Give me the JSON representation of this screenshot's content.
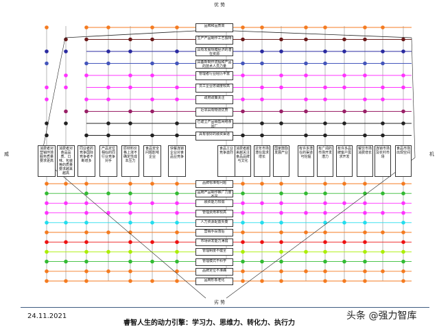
{
  "axis": {
    "top": "优 势",
    "bottom": "劣 势",
    "left": "威",
    "right": "机"
  },
  "top_items": [
    {
      "label": "品牌和品质高",
      "color": "#f47b20"
    },
    {
      "label": "生产产品制作工艺独特",
      "color": "#6b1a1a"
    },
    {
      "label": "具有发展规模经济的潜在资源",
      "color": "#2a2aa0"
    },
    {
      "label": "具备新制作流程和产品的技术人员力量",
      "color": "#4455bb"
    },
    {
      "label": "管理者行业经历丰富",
      "color": "#ff33ff"
    },
    {
      "label": "员工企业忠诚度较高",
      "color": "#ff33ff"
    },
    {
      "label": "政府政策关注",
      "color": "#ff33ff"
    },
    {
      "label": "近邻具有物流优势",
      "color": "#991f66"
    },
    {
      "label": "已建立产品销售网络食品厂",
      "color": "#222222"
    },
    {
      "label": "具有很好的融资渠道",
      "color": "#222222"
    }
  ],
  "bottom_items": [
    {
      "label": "品牌标准有问题",
      "color": "#f47b20"
    },
    {
      "label": "品牌产品制作推广力度不足",
      "color": "#33bb33"
    },
    {
      "label": "融资能力较弱",
      "color": "#ff33ff"
    },
    {
      "label": "管理费用率较高",
      "color": "#ff33ff"
    },
    {
      "label": "人力资源配置失衡",
      "color": "#22ddee"
    },
    {
      "label": "营销手段落后",
      "color": "#f47b20"
    },
    {
      "label": "市场研发能力薄弱",
      "color": "#ee1111"
    },
    {
      "label": "管理制度不健全",
      "color": "#aaee00"
    },
    {
      "label": "管理模式不科学",
      "color": "#33bb33"
    },
    {
      "label": "品牌定位不准确",
      "color": "#f47b20"
    },
    {
      "label": "品牌形象老化",
      "color": "#f47b20"
    }
  ],
  "left_items": [
    "消费者对营销环境服务质量要求更高",
    "消费者对食品品质、口味、包装等的质量要求越来越高",
    "同业者的竞争国际竞争者不断增多",
    "产品定位相似的同行业竞争对手",
    "原材料价格上涨不确定性成本压力",
    "食品安全问题影响企业",
    "快餐连锁企业对食品业竞争",
    "食品工业竞争激烈"
  ],
  "right_items": [
    "消费者越来越关注食品品牌与文化",
    "近年市场潜在需求增长",
    "国家鼓励发展产业",
    "有许多潜在的渠道可挖掘",
    "有广阔的市场开发潜力",
    "有许多品牌客户需求开发",
    "餐饮市场消费增长",
    "连锁市场及农村市场",
    "食品市场出现空间"
  ],
  "footer": {
    "date": "24.11.2021",
    "caption": "睿智人生的动力引擎：学习力、思维力、转化力、执行力",
    "brand": "头条 @强力智库"
  }
}
